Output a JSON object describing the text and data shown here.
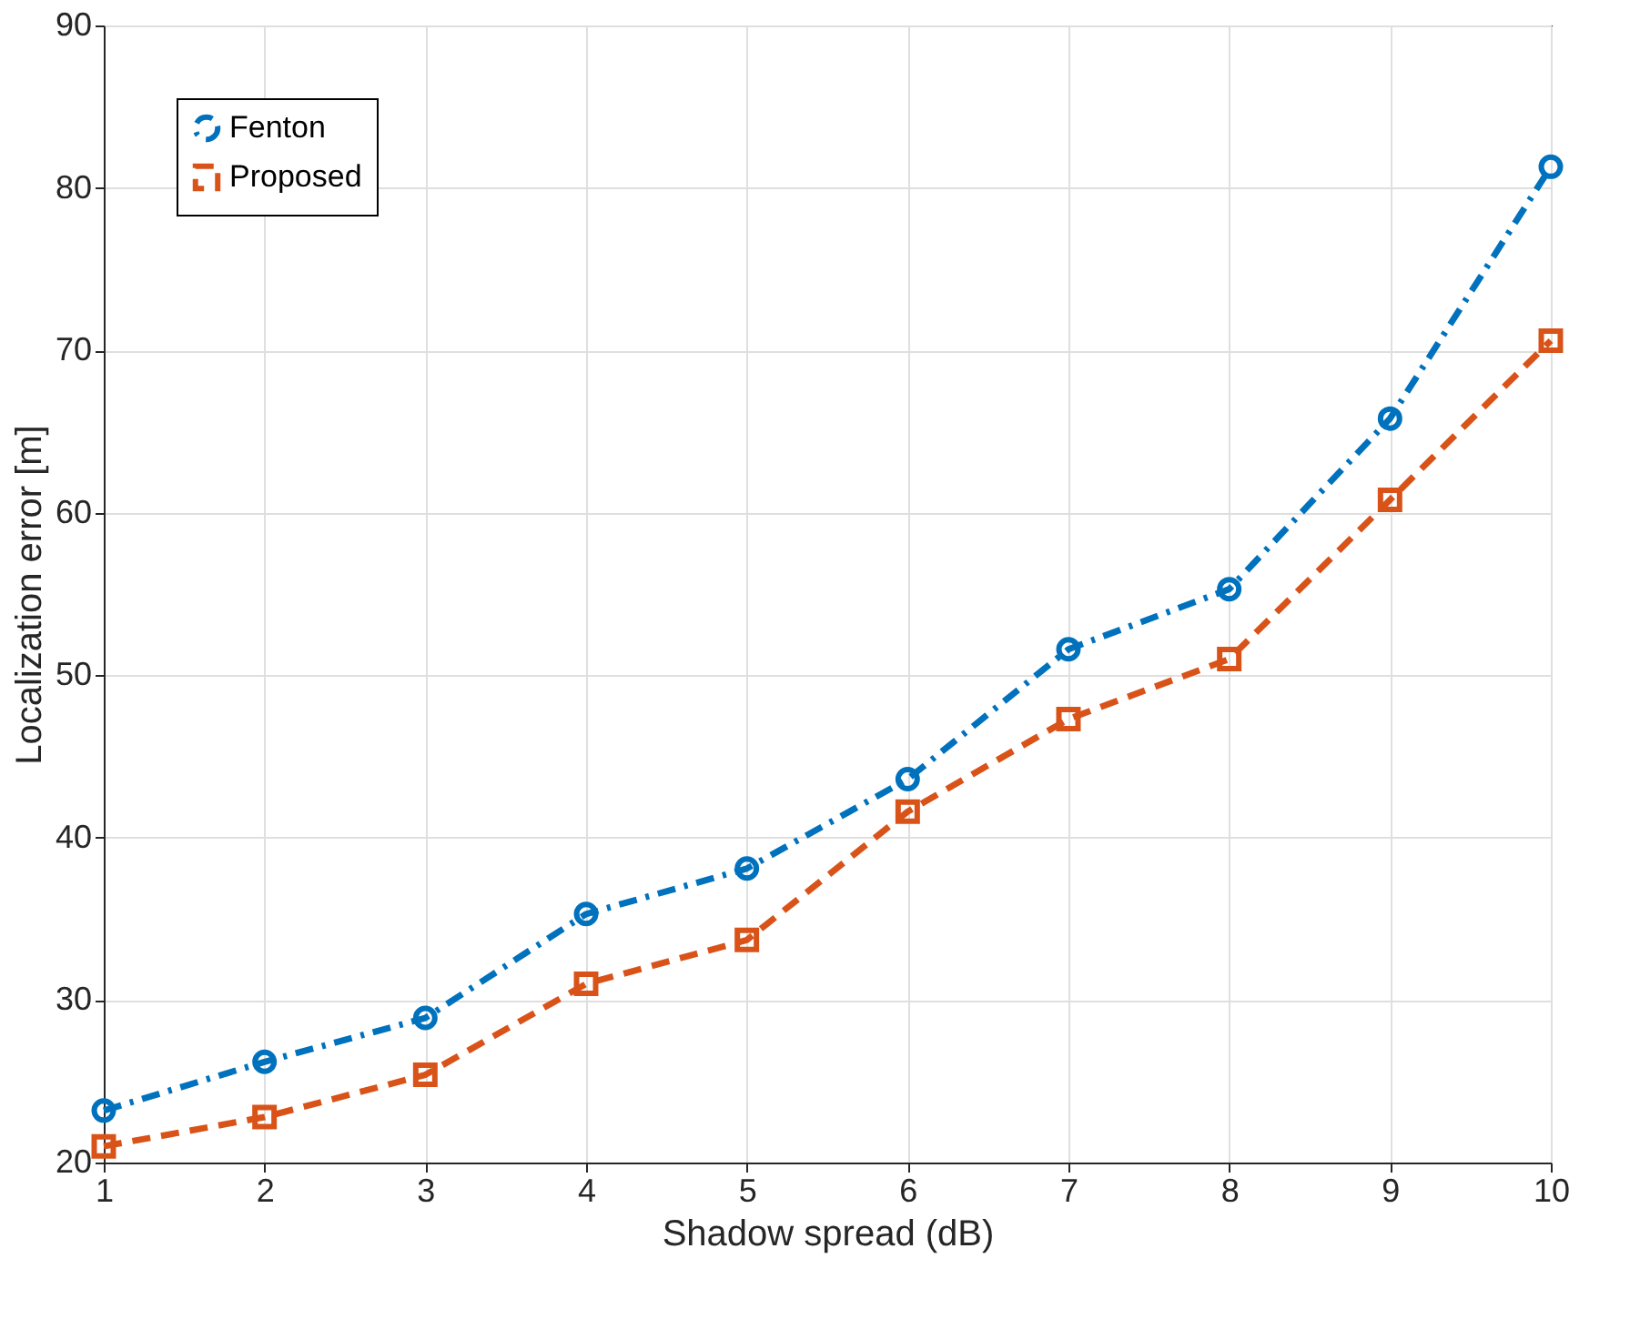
{
  "chart_data": {
    "type": "line",
    "xlabel": "Shadow spread (dB)",
    "ylabel": "Localization error [m]",
    "x": [
      1,
      2,
      3,
      4,
      5,
      6,
      7,
      8,
      9,
      10
    ],
    "series": [
      {
        "name": "Fenton",
        "color": "#0072bd",
        "marker": "circle",
        "line_style": "dashdot",
        "values": [
          23.2,
          26.2,
          28.9,
          35.3,
          38.1,
          43.6,
          51.6,
          55.3,
          65.8,
          81.3
        ]
      },
      {
        "name": "Proposed",
        "color": "#d95319",
        "marker": "square",
        "line_style": "dashed",
        "values": [
          21.0,
          22.8,
          25.4,
          31.0,
          33.7,
          41.6,
          47.3,
          51.0,
          60.8,
          70.6
        ]
      }
    ],
    "xlim": [
      1,
      10
    ],
    "xticks": [
      1,
      2,
      3,
      4,
      5,
      6,
      7,
      8,
      9,
      10
    ],
    "ylim": [
      20,
      90
    ],
    "yticks": [
      20,
      30,
      40,
      50,
      60,
      70,
      80,
      90
    ],
    "grid": true,
    "legend": "top left"
  }
}
